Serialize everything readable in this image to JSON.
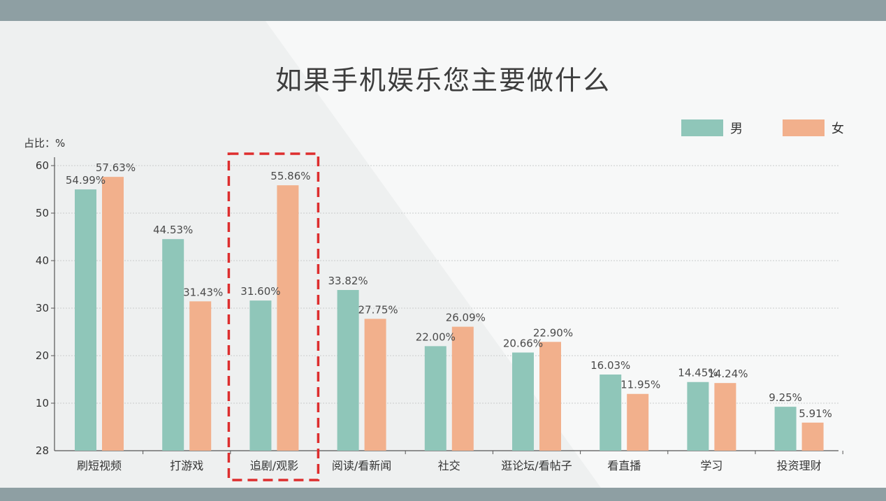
{
  "colors": {
    "male": "#8fc6b9",
    "female": "#f2b08c",
    "highlight_box": "#dd2e2e",
    "frame": "#8e9fa3",
    "background": "#eef0f0"
  },
  "chart_data": {
    "type": "bar",
    "title": "如果手机娱乐您主要做什么",
    "y_unit_label": "占比：%",
    "legend_position": "top-right",
    "grid": true,
    "ylim": [
      0,
      60
    ],
    "y_ticks": [
      "10",
      "20",
      "30",
      "40",
      "50",
      "60"
    ],
    "y_origin_label": "28",
    "categories": [
      "刷短视频",
      "打游戏",
      "追剧/观影",
      "阅读/看新闻",
      "社交",
      "逛论坛/看帖子",
      "看直播",
      "学习",
      "投资理财"
    ],
    "series": [
      {
        "name": "男",
        "values": [
          54.99,
          44.53,
          31.6,
          33.82,
          22.0,
          20.66,
          16.03,
          14.45,
          9.25
        ],
        "labels": [
          "54.99%",
          "44.53%",
          "31.60%",
          "33.82%",
          "22.00%",
          "20.66%",
          "16.03%",
          "14.45%",
          "9.25%"
        ]
      },
      {
        "name": "女",
        "values": [
          57.63,
          31.43,
          55.86,
          27.75,
          26.09,
          22.9,
          11.95,
          14.24,
          5.91
        ],
        "labels": [
          "57.63%",
          "31.43%",
          "55.86%",
          "27.75%",
          "26.09%",
          "22.90%",
          "11.95%",
          "14.24%",
          "5.91%"
        ]
      }
    ],
    "highlighted_category": "追剧/观影"
  }
}
